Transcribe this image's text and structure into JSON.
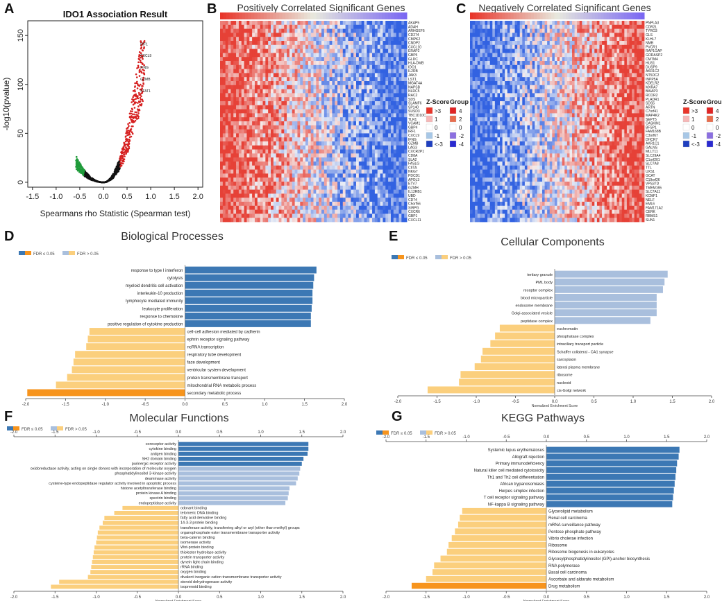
{
  "panels": {
    "A": {
      "label": "A"
    },
    "B": {
      "label": "B"
    },
    "C": {
      "label": "C"
    },
    "D": {
      "label": "D"
    },
    "E": {
      "label": "E"
    },
    "F": {
      "label": "F"
    },
    "G": {
      "label": "G"
    }
  },
  "legend": {
    "fdr_sig": "FDR ≤ 0.05",
    "fdr_nonsig": "FDR > 0.05"
  },
  "colors": {
    "dark_blue": "#3c78b4",
    "light_blue": "#a9bfdd",
    "light_orange": "#fbcf7d",
    "dark_orange": "#f7941d",
    "heat_red": "#e8352a",
    "heat_blue": "#2c5fb8",
    "scatter_red": "#d62020",
    "scatter_green": "#1f9b3a"
  },
  "chart_data": [
    {
      "id": "A",
      "type": "scatter",
      "title": "IDO1 Association Result",
      "xlabel": "Spearmans rho Statistic (Spearman test)",
      "ylabel": "-log10(pvalue)",
      "xlim": [
        -1.6,
        2.1
      ],
      "ylim": [
        -5,
        165
      ],
      "xticks": [
        "-1.5",
        "-1.0",
        "-0.5",
        "0.0",
        "0.5",
        "1.0",
        "1.5",
        "2.0"
      ],
      "yticks": [
        "0",
        "50",
        "100",
        "150"
      ],
      "highlight_labels": [
        "IRF1",
        "CXCL9",
        "IFNG",
        "GZMB",
        "STAT1"
      ]
    },
    {
      "id": "B",
      "type": "heatmap",
      "title": "Positively Correlated Significant Genes",
      "genes": [
        "AKAP5",
        "ADAH",
        "ARHGEF6",
        "CD274",
        "CMPK2",
        "CNDP2",
        "CXCL10",
        "ERAP2",
        "GBP5",
        "GLDC",
        "HLA-DMB",
        "IDO1",
        "IL2RB",
        "JAK3",
        "LST1",
        "MGAT4A",
        "NAPSB",
        "NLRC5",
        "RAC2",
        "SDS",
        "SLAMF6",
        "SP140",
        "SUSD3",
        "TBC1D10C",
        "TLR1",
        "VCAM1",
        "GBP4",
        "IRF1",
        "CXCL9",
        "IFNG",
        "GZMB",
        "LAG3",
        "CXCR2P1",
        "CD8A",
        "SLA2",
        "FASLG",
        "CIITA",
        "NKG7",
        "PDCD1",
        "APOL3",
        "ETV7",
        "GZMH",
        "IL12RB1",
        "UBD",
        "CD74",
        "C5orf56",
        "SIRPG",
        "CXCR6",
        "GBP1",
        "CXCL11"
      ],
      "zscore_title": "Z-Score",
      "group_title": "Group",
      "zscore_labels": [
        ">3",
        "1",
        "0",
        "-1",
        "<-3"
      ],
      "group_labels": [
        "4",
        "2",
        "0",
        "-2",
        "-4"
      ]
    },
    {
      "id": "C",
      "type": "heatmap",
      "title": "Negatively Correlated Significant Genes",
      "genes": [
        "PNPLA3",
        "CDR2L",
        "TYRO3",
        "GLS",
        "KLHL7",
        "NMB",
        "PVCR1",
        "RAP1GAP",
        "GORASP2",
        "CMTM4",
        "HUS1",
        "DUSP9",
        "AKR1C2",
        "NT5DC2",
        "INPP5A",
        "KDELR2",
        "MXRA7",
        "BAIAP3",
        "RCOR2",
        "PLADR1",
        "SDS5",
        "ARTN",
        "C7orf41",
        "MAP4K2",
        "SEPT5",
        "CASKIN1",
        "BFSP1",
        "FAM168B",
        "C3orf67",
        "DHCR7",
        "AKR1C1",
        "GALNS",
        "MLLT11",
        "SLC29A4",
        "C1orf201",
        "SLC7A8",
        "TTL",
        "UXS1",
        "GCAT",
        "C19orf26",
        "VPS37D",
        "TMEM165",
        "SLC7A11",
        "KCMF1",
        "NELF",
        "EML6",
        "FAM171A2",
        "CERK",
        "RBMS1",
        "SUN1"
      ],
      "zscore_title": "Z-Score",
      "group_title": "Group",
      "zscore_labels": [
        ">3",
        "1",
        "0",
        "-1",
        "<-3"
      ],
      "group_labels": [
        "4",
        "2",
        "0",
        "-2",
        "-4"
      ]
    },
    {
      "id": "D",
      "type": "bar",
      "orientation": "horizontal",
      "title": "Biological Processes",
      "xlim": [
        -2.0,
        2.0
      ],
      "xticks": [
        "-2.0",
        "-1.5",
        "-1.0",
        "-0.5",
        "0.0",
        "0.5",
        "1.0",
        "1.5",
        "2.0"
      ],
      "xlabel": "",
      "categories": [
        "response to type I interferon",
        "cytolysis",
        "myeloid dendritic cell activation",
        "interleukin-10 production",
        "lymphocyte mediated immunity",
        "leukocyte proliferation",
        "response to chemokine",
        "positive regulation of cytokine production",
        "cell-cell adhesion mediated by cadherin",
        "ephrin receptor signaling pathway",
        "ncRNA transcription",
        "respiratory tube development",
        "face development",
        "ventricular system development",
        "protein transmembrane transport",
        "mitochondrial RNA metabolic process",
        "secondary metabolic process"
      ],
      "values": [
        1.65,
        1.62,
        1.61,
        1.6,
        1.6,
        1.59,
        1.58,
        1.58,
        -1.2,
        -1.22,
        -1.24,
        -1.38,
        -1.4,
        -1.42,
        -1.48,
        -1.62,
        -1.98
      ],
      "significant": [
        true,
        true,
        true,
        true,
        true,
        true,
        true,
        true,
        false,
        false,
        false,
        false,
        false,
        false,
        false,
        false,
        true
      ]
    },
    {
      "id": "E",
      "type": "bar",
      "orientation": "horizontal",
      "title": "Cellular Components",
      "xlim": [
        -2.0,
        2.0
      ],
      "xticks": [
        "-2.0",
        "-1.5",
        "-1.0",
        "-0.5",
        "0.0",
        "0.5",
        "1.0",
        "1.5",
        "2.0"
      ],
      "xlabel": "Normalized Enrichment Score",
      "categories": [
        "tertiary granule",
        "PML body",
        "receptor complex",
        "blood microparticle",
        "endosome membrane",
        "Golgi-associated vesicle",
        "peptidase complex",
        "euchromatin",
        "phosphatase complex",
        "intraciliary transport particle",
        "Schaffer collateral - CA1 synapse",
        "sarcoplasm",
        "lateral plasma membrane",
        "ribosome",
        "nucleoid",
        "cis-Golgi network"
      ],
      "values": [
        1.44,
        1.4,
        1.38,
        1.3,
        1.3,
        1.3,
        1.22,
        -0.7,
        -0.76,
        -0.82,
        -0.92,
        -0.94,
        -1.02,
        -1.2,
        -1.22,
        -1.62
      ],
      "significant": [
        false,
        false,
        false,
        false,
        false,
        false,
        false,
        false,
        false,
        false,
        false,
        false,
        false,
        false,
        false,
        false
      ]
    },
    {
      "id": "F",
      "type": "bar",
      "orientation": "horizontal",
      "title": "Molecular Functions",
      "xlim": [
        -2.0,
        2.0
      ],
      "xticks": [
        "-2.0",
        "-1.5",
        "-1.0",
        "-0.5",
        "0.0",
        "0.5",
        "1.0",
        "1.5",
        "2.0"
      ],
      "xlabel": "Normalized Enrichment Score",
      "categories": [
        "coreceptor activity",
        "cytokine binding",
        "antigen binding",
        "SH2 domain binding",
        "purinergic receptor activity",
        "oxidoreductase activity, acting on single donors with incorporation of molecular oxygen",
        "phosphatidylinositol 3-kinase activity",
        "deaminase activity",
        "cysteine-type endopeptidase regulator activity involved in apoptotic process",
        "histone acetyltransferase binding",
        "protein kinase A binding",
        "spectrin binding",
        "endopeptidase activity",
        "odorant binding",
        "telomeric DNA binding",
        "fatty acid derivative binding",
        "14-3-3 protein binding",
        "transferase activity, transferring alkyl or aryl (other than methyl) groups",
        "organophosphate ester transmembrane transporter activity",
        "beta-catenin binding",
        "isomerase activity",
        "Wnt-protein binding",
        "thiolester hydrolase activity",
        "protein transporter activity",
        "dynein light chain binding",
        "rRNA binding",
        "oxygen binding",
        "divalent inorganic cation transmembrane transporter activity",
        "steroid dehydrogenase activity",
        "isoprenoid binding"
      ],
      "values": [
        1.58,
        1.58,
        1.57,
        1.52,
        1.5,
        1.48,
        1.47,
        1.45,
        1.43,
        1.35,
        1.34,
        1.33,
        1.3,
        -0.68,
        -0.78,
        -0.9,
        -0.92,
        -0.96,
        -0.98,
        -0.99,
        -1.0,
        -1.02,
        -1.03,
        -1.04,
        -1.05,
        -1.06,
        -1.07,
        -1.1,
        -1.45,
        -1.55
      ],
      "significant": [
        true,
        true,
        true,
        true,
        true,
        false,
        false,
        false,
        false,
        false,
        false,
        false,
        false,
        false,
        false,
        false,
        false,
        false,
        false,
        false,
        false,
        false,
        false,
        false,
        false,
        false,
        false,
        false,
        false,
        false
      ]
    },
    {
      "id": "G",
      "type": "bar",
      "orientation": "horizontal",
      "title": "KEGG Pathways",
      "xlim": [
        -2.0,
        2.0
      ],
      "xticks": [
        "-2.0",
        "-1.5",
        "-1.0",
        "-0.5",
        "0.0",
        "0.5",
        "1.0",
        "1.5",
        "2.0"
      ],
      "xlabel": "Normalized Enrichment Score",
      "categories": [
        "Systemic lupus erythematosus",
        "Allograft rejection",
        "Primary immunodeficiency",
        "Natural killer cell mediated cytotoxicity",
        "Th1 and Th2 cell differentiation",
        "African trypanosomiasis",
        "Herpes simplex infection",
        "T cell receptor signaling pathway",
        "NF-kappa B signaling pathway",
        "Glycerolipid metabolism",
        "Renal cell carcinoma",
        "mRNA surveillance pathway",
        "Pentose phosphate pathway",
        "Vibrio cholerae infection",
        "Ribosome",
        "Ribosome biogenesis in eukaryotes",
        "Glycosylphosphatidylinositol (GPI)-anchor biosynthesis",
        "RNA polymerase",
        "Basal cell carcinoma",
        "Ascorbate and aldarate metabolism",
        "Drug metabolism"
      ],
      "values": [
        1.66,
        1.65,
        1.63,
        1.62,
        1.61,
        1.6,
        1.59,
        1.58,
        1.57,
        -1.05,
        -1.08,
        -1.1,
        -1.14,
        -1.18,
        -1.22,
        -1.24,
        -1.32,
        -1.4,
        -1.42,
        -1.5,
        -1.68
      ],
      "significant": [
        true,
        true,
        true,
        true,
        true,
        true,
        true,
        true,
        true,
        false,
        false,
        false,
        false,
        false,
        false,
        false,
        false,
        false,
        false,
        false,
        true
      ]
    }
  ]
}
